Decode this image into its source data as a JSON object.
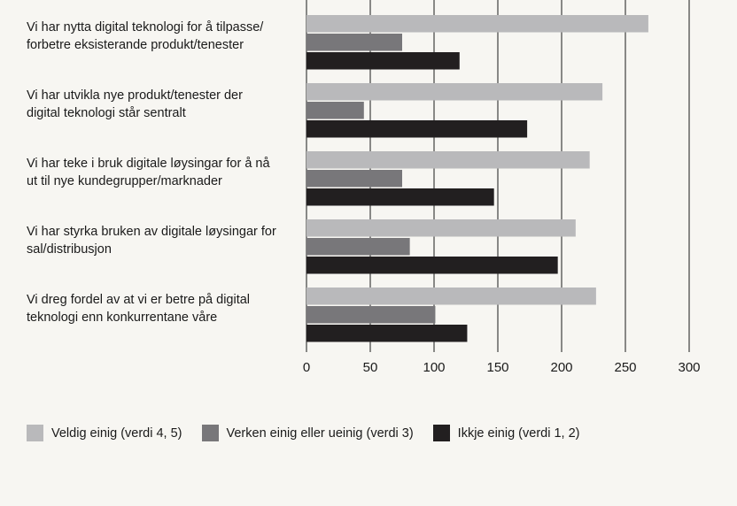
{
  "chart_data": {
    "type": "bar",
    "orientation": "horizontal",
    "categories": [
      [
        "Vi har nytta digital teknologi for å tilpasse/",
        "forbetre eksisterande produkt/tenester"
      ],
      [
        "Vi har utvikla nye produkt/tenester der",
        "digital teknologi står sentralt"
      ],
      [
        "Vi har teke i bruk digitale løysingar for å nå",
        "ut til nye kundegrupper/marknader"
      ],
      [
        "Vi har styrka bruken av digitale løysingar for",
        "sal/distribusjon"
      ],
      [
        "Vi dreg fordel av at vi er betre på digital",
        "teknologi enn konkurrentane våre"
      ]
    ],
    "series": [
      {
        "name": "Veldig einig (verdi 4, 5)",
        "color": "#b9b9bb",
        "values": [
          268,
          232,
          222,
          211,
          227
        ]
      },
      {
        "name": "Verken einig eller ueinig (verdi 3)",
        "color": "#78777a",
        "values": [
          75,
          45,
          75,
          81,
          101
        ]
      },
      {
        "name": "Ikkje einig (verdi 1, 2)",
        "color": "#221f20",
        "values": [
          120,
          173,
          147,
          197,
          126
        ]
      }
    ],
    "xlim": [
      0,
      300
    ],
    "xticks": [
      0,
      50,
      100,
      150,
      200,
      250,
      300
    ],
    "grid": true,
    "legend_position": "bottom"
  }
}
